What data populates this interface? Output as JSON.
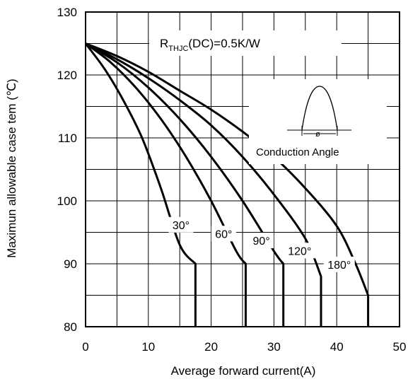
{
  "chart_data": {
    "type": "line",
    "xlabel": "Average forward current(A)",
    "ylabel": "Maximun allowable case tem (℃)",
    "xlim": [
      0,
      50
    ],
    "ylim": [
      80,
      130
    ],
    "xticks": [
      "0",
      "10",
      "20",
      "30",
      "40",
      "50"
    ],
    "yticks": [
      "80",
      "90",
      "100",
      "110",
      "120",
      "130"
    ],
    "grid": true,
    "annotation": {
      "prefix": "R",
      "subscript": "THJC",
      "suffix": "(DC)=0.5K/W"
    },
    "inset_label": "Conduction Angle",
    "inset_symbol": "ø",
    "series": [
      {
        "name": "30°",
        "x": [
          0,
          3,
          6,
          9,
          12,
          15,
          17.5,
          17.5
        ],
        "y": [
          125,
          121,
          116,
          110,
          102,
          93,
          90,
          80
        ]
      },
      {
        "name": "60°",
        "x": [
          0,
          4,
          8,
          12,
          16,
          20,
          24,
          25.5,
          25.5
        ],
        "y": [
          125,
          122,
          118,
          113,
          107,
          100,
          92,
          90,
          80
        ]
      },
      {
        "name": "90°",
        "x": [
          0,
          5,
          10,
          15,
          20,
          25,
          30,
          31.5,
          31.5
        ],
        "y": [
          125,
          122,
          118,
          113,
          107,
          100,
          92,
          90,
          80
        ]
      },
      {
        "name": "120°",
        "x": [
          0,
          5,
          10,
          15,
          20,
          25,
          30,
          35,
          37.5,
          37.5
        ],
        "y": [
          125,
          122.5,
          119.5,
          116,
          112,
          107,
          101,
          94,
          88,
          80
        ]
      },
      {
        "name": "180°",
        "x": [
          0,
          5,
          10,
          15,
          20,
          25,
          30,
          35,
          40,
          43,
          45,
          45
        ],
        "y": [
          125,
          123,
          120.5,
          117.5,
          114.5,
          111,
          107,
          102,
          96,
          90,
          85,
          80
        ]
      }
    ]
  }
}
